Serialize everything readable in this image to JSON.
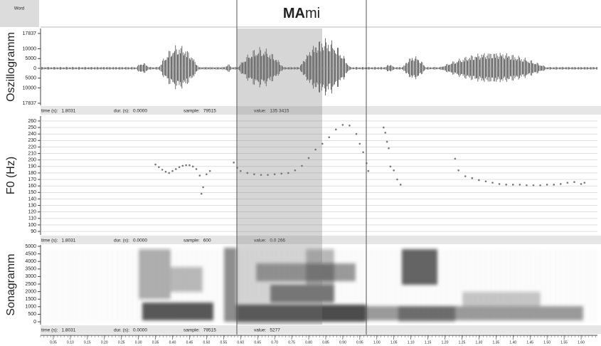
{
  "word_tier": {
    "label": "Word",
    "word_bold": "MA",
    "word_rest": "mi"
  },
  "oscillogram": {
    "axis_label": "Oszillogramm",
    "ylim": [
      -17837,
      17837
    ],
    "yticks": [
      17837,
      10000,
      5000,
      0,
      {
        "value": -5000,
        "label": "5000"
      },
      {
        "value": -10000,
        "label": "10000"
      },
      {
        "value": -17837,
        "label": "17837"
      }
    ]
  },
  "status_bars": [
    [
      {
        "label": "time (s):",
        "value": "1.8031"
      },
      {
        "label": "dur. (s):",
        "value": "0.0000"
      },
      {
        "label": "sample:",
        "value": "79515"
      },
      {
        "label": "value:",
        "value": "135 3415"
      }
    ],
    [
      {
        "label": "time (s):",
        "value": "1.8031"
      },
      {
        "label": "dur. (s):",
        "value": "0.0000"
      },
      {
        "label": "sample:",
        "value": "600"
      },
      {
        "label": "value:",
        "value": "0.0 266"
      }
    ],
    [
      {
        "label": "time (s):",
        "value": "1.8031"
      },
      {
        "label": "dur. (s):",
        "value": "0.0000"
      },
      {
        "label": "sample:",
        "value": "79515"
      },
      {
        "label": "value:",
        "value": "5277"
      }
    ]
  ],
  "chart_data": {
    "type": "scatter",
    "axis_label": "F0 (Hz)",
    "color": "#777777",
    "xlim": [
      0.0125,
      1.648
    ],
    "ylim": [
      85,
      265
    ],
    "yticks": [
      90,
      100,
      110,
      120,
      130,
      140,
      150,
      160,
      170,
      180,
      190,
      200,
      210,
      220,
      230,
      240,
      250,
      260
    ],
    "x": [
      0.35,
      0.36,
      0.37,
      0.38,
      0.39,
      0.4,
      0.41,
      0.42,
      0.43,
      0.44,
      0.45,
      0.46,
      0.47,
      0.48,
      0.485,
      0.49,
      0.5,
      0.51,
      0.58,
      0.59,
      0.6,
      0.62,
      0.64,
      0.66,
      0.68,
      0.7,
      0.72,
      0.74,
      0.76,
      0.78,
      0.8,
      0.82,
      0.84,
      0.86,
      0.88,
      0.9,
      0.92,
      0.94,
      0.95,
      0.96,
      0.97,
      0.975,
      1.02,
      1.025,
      1.03,
      1.035,
      1.04,
      1.05,
      1.06,
      1.07,
      1.23,
      1.24,
      1.26,
      1.28,
      1.3,
      1.32,
      1.34,
      1.36,
      1.38,
      1.4,
      1.42,
      1.44,
      1.46,
      1.48,
      1.5,
      1.52,
      1.54,
      1.56,
      1.58,
      1.6,
      1.61
    ],
    "values": [
      193,
      189,
      185,
      182,
      180,
      183,
      186,
      189,
      191,
      192,
      192,
      190,
      186,
      176,
      148,
      158,
      178,
      183,
      196,
      188,
      183,
      180,
      178,
      177,
      177,
      178,
      179,
      180,
      184,
      191,
      203,
      216,
      225,
      235,
      247,
      254,
      253,
      240,
      225,
      212,
      195,
      183,
      250,
      242,
      228,
      218,
      190,
      184,
      170,
      162,
      202,
      184,
      175,
      172,
      169,
      167,
      165,
      163,
      162,
      162,
      162,
      161,
      161,
      161,
      162,
      162,
      163,
      165,
      166,
      163,
      165
    ]
  },
  "sonagram": {
    "axis_label": "Sonagramm",
    "ylim": [
      0,
      5000
    ],
    "yticks": [
      0,
      500,
      1000,
      1500,
      2000,
      2500,
      3000,
      3500,
      4000,
      4500,
      5000
    ]
  },
  "time_axis": {
    "xticks": [
      0.05,
      {
        "value": 0.1,
        "label": "0.10"
      },
      0.15,
      {
        "value": 0.2,
        "label": "0.20"
      },
      0.25,
      {
        "value": 0.3,
        "label": "0.30"
      },
      0.35,
      {
        "value": 0.4,
        "label": "0.40"
      },
      0.45,
      {
        "value": 0.5,
        "label": "0.50"
      },
      0.55,
      {
        "value": 0.6,
        "label": "0.60"
      },
      0.65,
      {
        "value": 0.7,
        "label": "0.70"
      },
      0.75,
      {
        "value": 0.8,
        "label": "0.80"
      },
      0.85,
      {
        "value": 0.9,
        "label": "0.90"
      },
      0.95,
      {
        "value": 1,
        "label": "1.00"
      },
      1.05,
      {
        "value": 1.1,
        "label": "1.10"
      },
      1.15,
      {
        "value": 1.2,
        "label": "1.20"
      },
      1.25,
      {
        "value": 1.3,
        "label": "1.30"
      },
      1.35,
      {
        "value": 1.4,
        "label": "1.40"
      },
      1.45,
      {
        "value": 1.5,
        "label": "1.50"
      },
      1.55,
      {
        "value": 1.6,
        "label": "1.60"
      }
    ]
  }
}
